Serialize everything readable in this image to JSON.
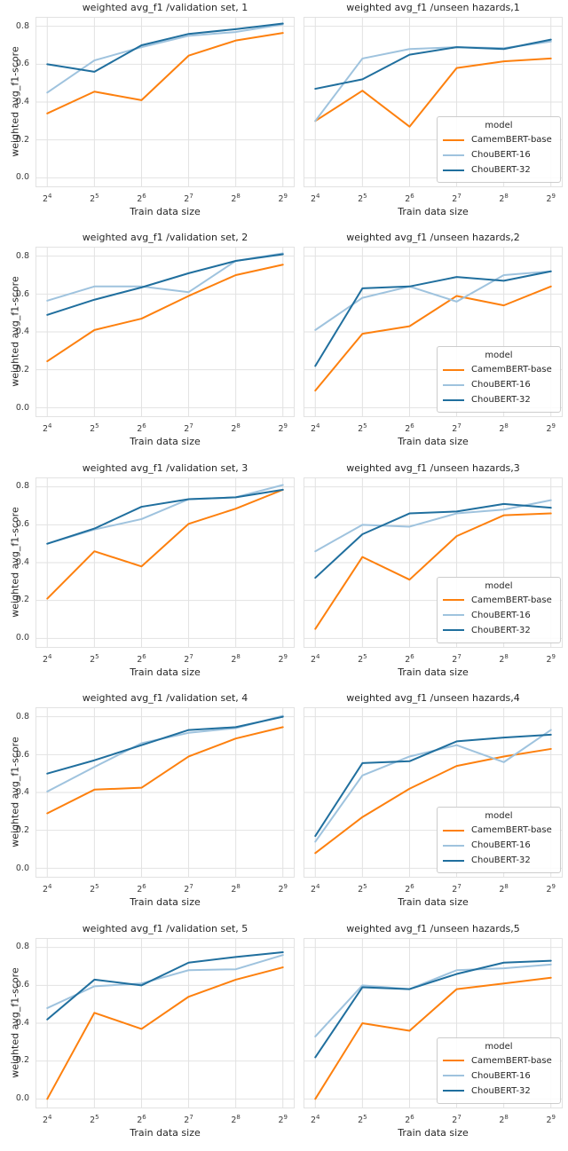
{
  "figure": {
    "x_tick_base": "2",
    "x_exponents": [
      4,
      5,
      6,
      7,
      8,
      9
    ],
    "y_tick_labels": [
      "0.0",
      "0.2",
      "0.4",
      "0.6",
      "0.8"
    ],
    "xlabel": "Train data size",
    "ylabel": "weighted avg_f1-score",
    "legend_title": "model",
    "grid_color": "#e2e2e2",
    "text_color": "#262626",
    "series_colors": {
      "CamemBERT-base": "#fd800e",
      "ChouBERT-16": "#9fc3de",
      "ChouBERT-32": "#206f9e"
    }
  },
  "chart_data": [
    {
      "type": "line",
      "title": "weighted avg_f1 /validation set, 1",
      "xlabel": "Train data size",
      "ylabel": "weighted avg_f1-score",
      "x_categories": [
        "2^4",
        "2^5",
        "2^6",
        "2^7",
        "2^8",
        "2^9"
      ],
      "x_exponents": [
        4,
        5,
        6,
        7,
        8,
        9
      ],
      "yticks": [
        0.0,
        0.2,
        0.4,
        0.6,
        0.8
      ],
      "ylim": [
        -0.05,
        0.85
      ],
      "xlim": [
        3.75,
        9.25
      ],
      "grid": true,
      "legend": null,
      "series": [
        {
          "name": "CamemBERT-base",
          "color": "#fd800e",
          "values": [
            0.34,
            0.455,
            0.41,
            0.645,
            0.725,
            0.765
          ]
        },
        {
          "name": "ChouBERT-16",
          "color": "#9fc3de",
          "values": [
            0.45,
            0.62,
            0.69,
            0.75,
            0.77,
            0.81
          ]
        },
        {
          "name": "ChouBERT-32",
          "color": "#206f9e",
          "values": [
            0.6,
            0.56,
            0.7,
            0.76,
            0.785,
            0.815
          ]
        }
      ]
    },
    {
      "type": "line",
      "title": "weighted avg_f1 /unseen hazards,1",
      "xlabel": "Train data size",
      "ylabel": "weighted avg_f1-score",
      "x_categories": [
        "2^4",
        "2^5",
        "2^6",
        "2^7",
        "2^8",
        "2^9"
      ],
      "x_exponents": [
        4,
        5,
        6,
        7,
        8,
        9
      ],
      "yticks": [
        0.0,
        0.2,
        0.4,
        0.6,
        0.8
      ],
      "ylim": [
        -0.05,
        0.85
      ],
      "xlim": [
        3.75,
        9.25
      ],
      "grid": true,
      "legend": {
        "title": "model",
        "position": "lower right"
      },
      "series": [
        {
          "name": "CamemBERT-base",
          "color": "#fd800e",
          "values": [
            0.3,
            0.46,
            0.27,
            0.58,
            0.615,
            0.63
          ]
        },
        {
          "name": "ChouBERT-16",
          "color": "#9fc3de",
          "values": [
            0.3,
            0.63,
            0.68,
            0.69,
            0.685,
            0.72
          ]
        },
        {
          "name": "ChouBERT-32",
          "color": "#206f9e",
          "values": [
            0.47,
            0.52,
            0.65,
            0.69,
            0.68,
            0.73
          ]
        }
      ]
    },
    {
      "type": "line",
      "title": "weighted avg_f1 /validation set, 2",
      "xlabel": "Train data size",
      "ylabel": "weighted avg_f1-score",
      "x_categories": [
        "2^4",
        "2^5",
        "2^6",
        "2^7",
        "2^8",
        "2^9"
      ],
      "x_exponents": [
        4,
        5,
        6,
        7,
        8,
        9
      ],
      "yticks": [
        0.0,
        0.2,
        0.4,
        0.6,
        0.8
      ],
      "ylim": [
        -0.05,
        0.85
      ],
      "xlim": [
        3.75,
        9.25
      ],
      "grid": true,
      "legend": null,
      "series": [
        {
          "name": "CamemBERT-base",
          "color": "#fd800e",
          "values": [
            0.245,
            0.41,
            0.47,
            0.59,
            0.7,
            0.755
          ]
        },
        {
          "name": "ChouBERT-16",
          "color": "#9fc3de",
          "values": [
            0.565,
            0.64,
            0.64,
            0.61,
            0.775,
            0.815
          ]
        },
        {
          "name": "ChouBERT-32",
          "color": "#206f9e",
          "values": [
            0.49,
            0.57,
            0.635,
            0.71,
            0.775,
            0.81
          ]
        }
      ]
    },
    {
      "type": "line",
      "title": "weighted avg_f1 /unseen hazards,2",
      "xlabel": "Train data size",
      "ylabel": "weighted avg_f1-score",
      "x_categories": [
        "2^4",
        "2^5",
        "2^6",
        "2^7",
        "2^8",
        "2^9"
      ],
      "x_exponents": [
        4,
        5,
        6,
        7,
        8,
        9
      ],
      "yticks": [
        0.0,
        0.2,
        0.4,
        0.6,
        0.8
      ],
      "ylim": [
        -0.05,
        0.85
      ],
      "xlim": [
        3.75,
        9.25
      ],
      "grid": true,
      "legend": {
        "title": "model",
        "position": "lower right"
      },
      "series": [
        {
          "name": "CamemBERT-base",
          "color": "#fd800e",
          "values": [
            0.09,
            0.39,
            0.43,
            0.59,
            0.54,
            0.64
          ]
        },
        {
          "name": "ChouBERT-16",
          "color": "#9fc3de",
          "values": [
            0.41,
            0.58,
            0.64,
            0.56,
            0.7,
            0.72
          ]
        },
        {
          "name": "ChouBERT-32",
          "color": "#206f9e",
          "values": [
            0.22,
            0.63,
            0.64,
            0.69,
            0.67,
            0.72
          ]
        }
      ]
    },
    {
      "type": "line",
      "title": "weighted avg_f1 /validation set, 3",
      "xlabel": "Train data size",
      "ylabel": "weighted avg_f1-score",
      "x_categories": [
        "2^4",
        "2^5",
        "2^6",
        "2^7",
        "2^8",
        "2^9"
      ],
      "x_exponents": [
        4,
        5,
        6,
        7,
        8,
        9
      ],
      "yticks": [
        0.0,
        0.2,
        0.4,
        0.6,
        0.8
      ],
      "ylim": [
        -0.05,
        0.85
      ],
      "xlim": [
        3.75,
        9.25
      ],
      "grid": true,
      "legend": null,
      "series": [
        {
          "name": "CamemBERT-base",
          "color": "#fd800e",
          "values": [
            0.21,
            0.46,
            0.38,
            0.605,
            0.685,
            0.785
          ]
        },
        {
          "name": "ChouBERT-16",
          "color": "#9fc3de",
          "values": [
            0.5,
            0.575,
            0.63,
            0.735,
            0.745,
            0.81
          ]
        },
        {
          "name": "ChouBERT-32",
          "color": "#206f9e",
          "values": [
            0.5,
            0.58,
            0.695,
            0.735,
            0.745,
            0.785
          ]
        }
      ]
    },
    {
      "type": "line",
      "title": "weighted avg_f1 /unseen hazards,3",
      "xlabel": "Train data size",
      "ylabel": "weighted avg_f1-score",
      "x_categories": [
        "2^4",
        "2^5",
        "2^6",
        "2^7",
        "2^8",
        "2^9"
      ],
      "x_exponents": [
        4,
        5,
        6,
        7,
        8,
        9
      ],
      "yticks": [
        0.0,
        0.2,
        0.4,
        0.6,
        0.8
      ],
      "ylim": [
        -0.05,
        0.85
      ],
      "xlim": [
        3.75,
        9.25
      ],
      "grid": true,
      "legend": {
        "title": "model",
        "position": "lower right"
      },
      "series": [
        {
          "name": "CamemBERT-base",
          "color": "#fd800e",
          "values": [
            0.05,
            0.43,
            0.31,
            0.54,
            0.65,
            0.66
          ]
        },
        {
          "name": "ChouBERT-16",
          "color": "#9fc3de",
          "values": [
            0.46,
            0.6,
            0.59,
            0.66,
            0.68,
            0.73
          ]
        },
        {
          "name": "ChouBERT-32",
          "color": "#206f9e",
          "values": [
            0.32,
            0.55,
            0.66,
            0.67,
            0.71,
            0.69
          ]
        }
      ]
    },
    {
      "type": "line",
      "title": "weighted avg_f1 /validation set, 4",
      "xlabel": "Train data size",
      "ylabel": "weighted avg_f1-score",
      "x_categories": [
        "2^4",
        "2^5",
        "2^6",
        "2^7",
        "2^8",
        "2^9"
      ],
      "x_exponents": [
        4,
        5,
        6,
        7,
        8,
        9
      ],
      "yticks": [
        0.0,
        0.2,
        0.4,
        0.6,
        0.8
      ],
      "ylim": [
        -0.05,
        0.85
      ],
      "xlim": [
        3.75,
        9.25
      ],
      "grid": true,
      "legend": null,
      "series": [
        {
          "name": "CamemBERT-base",
          "color": "#fd800e",
          "values": [
            0.29,
            0.415,
            0.425,
            0.59,
            0.685,
            0.745
          ]
        },
        {
          "name": "ChouBERT-16",
          "color": "#9fc3de",
          "values": [
            0.405,
            0.535,
            0.66,
            0.715,
            0.74,
            0.805
          ]
        },
        {
          "name": "ChouBERT-32",
          "color": "#206f9e",
          "values": [
            0.5,
            0.57,
            0.65,
            0.73,
            0.745,
            0.8
          ]
        }
      ]
    },
    {
      "type": "line",
      "title": "weighted avg_f1 /unseen hazards,4",
      "xlabel": "Train data size",
      "ylabel": "weighted avg_f1-score",
      "x_categories": [
        "2^4",
        "2^5",
        "2^6",
        "2^7",
        "2^8",
        "2^9"
      ],
      "x_exponents": [
        4,
        5,
        6,
        7,
        8,
        9
      ],
      "yticks": [
        0.0,
        0.2,
        0.4,
        0.6,
        0.8
      ],
      "ylim": [
        -0.05,
        0.85
      ],
      "xlim": [
        3.75,
        9.25
      ],
      "grid": true,
      "legend": {
        "title": "model",
        "position": "lower right"
      },
      "series": [
        {
          "name": "CamemBERT-base",
          "color": "#fd800e",
          "values": [
            0.08,
            0.27,
            0.42,
            0.54,
            0.59,
            0.63
          ]
        },
        {
          "name": "ChouBERT-16",
          "color": "#9fc3de",
          "values": [
            0.14,
            0.49,
            0.59,
            0.65,
            0.56,
            0.73
          ]
        },
        {
          "name": "ChouBERT-32",
          "color": "#206f9e",
          "values": [
            0.17,
            0.555,
            0.565,
            0.67,
            0.69,
            0.705
          ]
        }
      ]
    },
    {
      "type": "line",
      "title": "weighted avg_f1 /validation set, 5",
      "xlabel": "Train data size",
      "ylabel": "weighted avg_f1-score",
      "x_categories": [
        "2^4",
        "2^5",
        "2^6",
        "2^7",
        "2^8",
        "2^9"
      ],
      "x_exponents": [
        4,
        5,
        6,
        7,
        8,
        9
      ],
      "yticks": [
        0.0,
        0.2,
        0.4,
        0.6,
        0.8
      ],
      "ylim": [
        -0.05,
        0.85
      ],
      "xlim": [
        3.75,
        9.25
      ],
      "grid": true,
      "legend": null,
      "series": [
        {
          "name": "CamemBERT-base",
          "color": "#fd800e",
          "values": [
            0.0,
            0.455,
            0.37,
            0.54,
            0.63,
            0.695
          ]
        },
        {
          "name": "ChouBERT-16",
          "color": "#9fc3de",
          "values": [
            0.48,
            0.595,
            0.61,
            0.68,
            0.685,
            0.76
          ]
        },
        {
          "name": "ChouBERT-32",
          "color": "#206f9e",
          "values": [
            0.42,
            0.63,
            0.6,
            0.72,
            0.75,
            0.775
          ]
        }
      ]
    },
    {
      "type": "line",
      "title": "weighted avg_f1 /unseen hazards,5",
      "xlabel": "Train data size",
      "ylabel": "weighted avg_f1-score",
      "x_categories": [
        "2^4",
        "2^5",
        "2^6",
        "2^7",
        "2^8",
        "2^9"
      ],
      "x_exponents": [
        4,
        5,
        6,
        7,
        8,
        9
      ],
      "yticks": [
        0.0,
        0.2,
        0.4,
        0.6,
        0.8
      ],
      "ylim": [
        -0.05,
        0.85
      ],
      "xlim": [
        3.75,
        9.25
      ],
      "grid": true,
      "legend": {
        "title": "model",
        "position": "lower right"
      },
      "series": [
        {
          "name": "CamemBERT-base",
          "color": "#fd800e",
          "values": [
            0.0,
            0.4,
            0.36,
            0.58,
            0.61,
            0.64
          ]
        },
        {
          "name": "ChouBERT-16",
          "color": "#9fc3de",
          "values": [
            0.33,
            0.6,
            0.58,
            0.68,
            0.69,
            0.71
          ]
        },
        {
          "name": "ChouBERT-32",
          "color": "#206f9e",
          "values": [
            0.22,
            0.59,
            0.58,
            0.66,
            0.72,
            0.73
          ]
        }
      ]
    }
  ]
}
